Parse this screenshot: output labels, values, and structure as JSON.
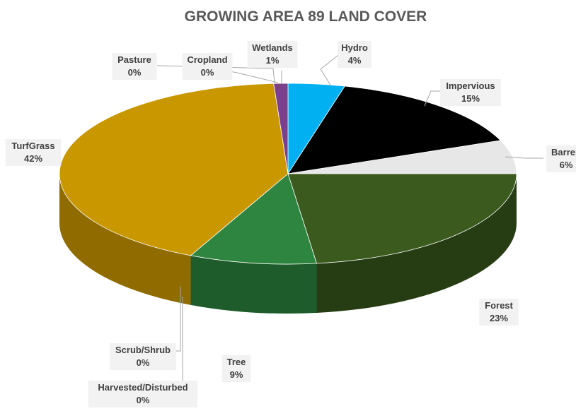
{
  "chart_data": {
    "type": "pie",
    "title": "GROWING AREA 89 LAND COVER",
    "slices": [
      {
        "name": "Hydro",
        "value": 4,
        "label": "4%",
        "color": "#00b0f0",
        "side": "#0089bb"
      },
      {
        "name": "Impervious",
        "value": 15,
        "label": "15%",
        "color": "#000000",
        "side": "#000000"
      },
      {
        "name": "Barren",
        "value": 6,
        "label": "6%",
        "color": "#e7e7e7",
        "side": "#b8b8b8"
      },
      {
        "name": "Forest",
        "value": 23,
        "label": "23%",
        "color": "#3a5a1e",
        "side": "#263d13"
      },
      {
        "name": "Tree",
        "value": 9,
        "label": "9%",
        "color": "#2e8540",
        "side": "#1e5c2b"
      },
      {
        "name": "Harvested/Disturbed",
        "value": 0,
        "label": "0%",
        "color": "#a9a9a9",
        "side": "#7f7f7f"
      },
      {
        "name": "Scrub/Shrub",
        "value": 0,
        "label": "0%",
        "color": "#7f7f7f",
        "side": "#5a5a5a"
      },
      {
        "name": "TurfGrass",
        "value": 42,
        "label": "42%",
        "color": "#c99700",
        "side": "#8f6b00"
      },
      {
        "name": "Pasture",
        "value": 0,
        "label": "0%",
        "color": "#bfbfbf",
        "side": "#8f8f8f"
      },
      {
        "name": "Cropland",
        "value": 0,
        "label": "0%",
        "color": "#d9d9d9",
        "side": "#a6a6a6"
      },
      {
        "name": "Wetlands",
        "value": 1,
        "label": "1%",
        "color": "#7b3f8c",
        "side": "#552b61"
      }
    ],
    "legend": "none (data labels with leader lines)"
  }
}
